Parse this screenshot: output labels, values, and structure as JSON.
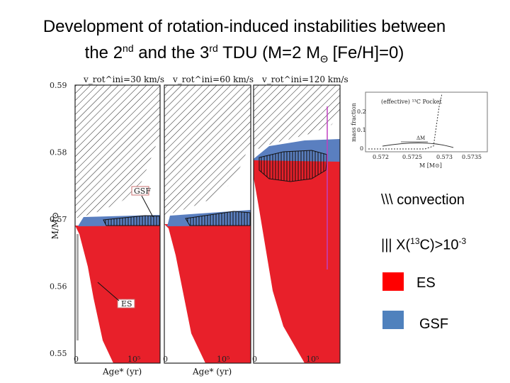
{
  "title": {
    "line1": "Development of rotation-induced instabilities  between",
    "line2_a": "the 2",
    "line2_sup1": "nd",
    "line2_b": " and the 3",
    "line2_sup2": "rd",
    "line2_c": " TDU  (M=2 M",
    "line2_sub": "Θ",
    "line2_d": "  [Fe/H]=0)"
  },
  "legend": {
    "convection": "\\\\\\ convection",
    "c13_a": "|||  X(",
    "c13_sup": "13",
    "c13_b": "C)>10",
    "c13_sup2": "-3",
    "es": "ES",
    "gsf": "GSF",
    "es_color": "#ff0000",
    "gsf_color": "#4f81bd"
  },
  "chart_data": {
    "type": "area",
    "ylabel": "M/M⊙",
    "xlabel": "Age* (yr)",
    "ylim": [
      0.55,
      0.59
    ],
    "yticks": [
      "0.59",
      "0.58",
      "0.57",
      "0.56",
      "0.55"
    ],
    "xticks": [
      "0",
      "10⁵"
    ],
    "panels": [
      {
        "label": "v_rot^ini=30  km/s"
      },
      {
        "label": "v_rot^ini=60  km/s"
      },
      {
        "label": "v_rot^ini=120  km/s"
      }
    ],
    "annotations": [
      "GSF",
      "ES"
    ],
    "series": [
      {
        "name": "ES",
        "color": "#e8202a"
      },
      {
        "name": "GSF",
        "color": "#5a7fc0"
      }
    ],
    "inset": {
      "ylabel": "mass fraction",
      "xlabel": "M [M⊙]",
      "label": "(effective) ¹³C Pocket",
      "dm_label": "ΔM",
      "yticks": [
        "0.2",
        "0.1",
        "0"
      ],
      "xticks": [
        "0.572",
        "0.5725",
        "0.573",
        "0.5735"
      ]
    }
  }
}
